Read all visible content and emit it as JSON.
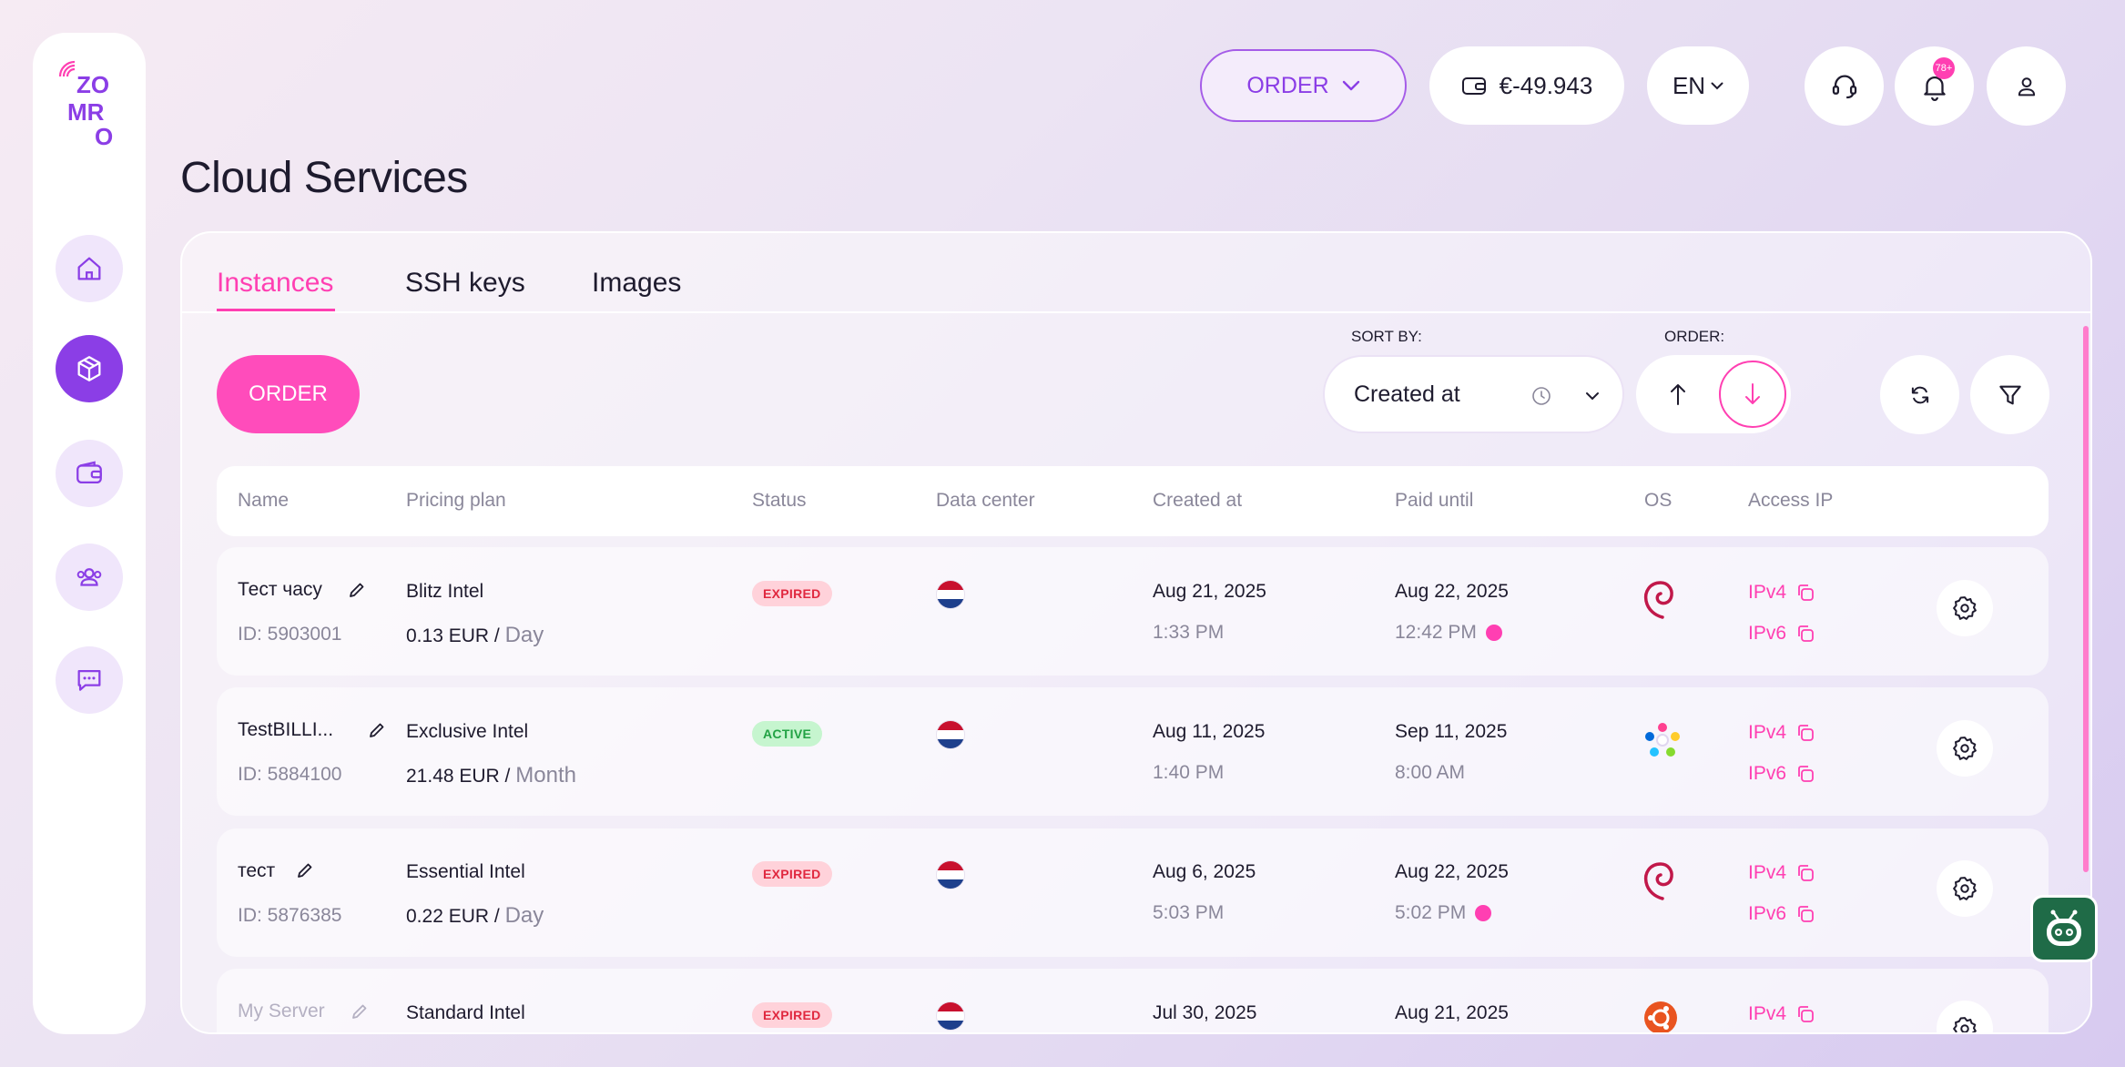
{
  "brand": {
    "logo_text": "ZOMRO"
  },
  "nav": [
    {
      "name": "home-icon",
      "active": false
    },
    {
      "name": "cube-icon",
      "active": true
    },
    {
      "name": "wallet-icon",
      "active": false
    },
    {
      "name": "users-icon",
      "active": false
    },
    {
      "name": "chat-icon",
      "active": false
    }
  ],
  "header": {
    "order_label": "ORDER",
    "balance": "€-49.943",
    "language": "EN",
    "notifications_badge": "78+"
  },
  "page": {
    "title": "Cloud Services"
  },
  "tabs": [
    {
      "label": "Instances",
      "active": true
    },
    {
      "label": "SSH keys",
      "active": false
    },
    {
      "label": "Images",
      "active": false
    }
  ],
  "toolbar": {
    "order_label": "ORDER",
    "sort_by_label": "SORT BY:",
    "sort_value": "Created at",
    "order_label_small": "ORDER:",
    "order_direction": "desc"
  },
  "table": {
    "columns": [
      "Name",
      "Pricing plan",
      "Status",
      "Data center",
      "Created at",
      "Paid until",
      "OS",
      "Access IP"
    ],
    "rows": [
      {
        "name": "Тест часу",
        "id": "ID: 5903001",
        "plan": "Blitz Intel",
        "price": "0.13 EUR /",
        "unit": "Day",
        "status": "EXPIRED",
        "dc": "netherlands-flag",
        "created_date": "Aug 21, 2025",
        "created_time": "1:33 PM",
        "paid_date": "Aug 22, 2025",
        "paid_time": "12:42 PM",
        "paid_warning": true,
        "os": "debian-icon",
        "ipv4": "IPv4",
        "ipv6": "IPv6",
        "dimmed": false
      },
      {
        "name": "TestBILLI...",
        "id": "ID: 5884100",
        "plan": "Exclusive Intel",
        "price": "21.48 EUR /",
        "unit": "Month",
        "status": "ACTIVE",
        "dc": "netherlands-flag",
        "created_date": "Aug 11, 2025",
        "created_time": "1:40 PM",
        "paid_date": "Sep 11, 2025",
        "paid_time": "8:00 AM",
        "paid_warning": false,
        "os": "almalinux-icon",
        "ipv4": "IPv4",
        "ipv6": "IPv6",
        "dimmed": false
      },
      {
        "name": "тест",
        "id": "ID: 5876385",
        "plan": "Essential Intel",
        "price": "0.22 EUR /",
        "unit": "Day",
        "status": "EXPIRED",
        "dc": "netherlands-flag",
        "created_date": "Aug 6, 2025",
        "created_time": "5:03 PM",
        "paid_date": "Aug 22, 2025",
        "paid_time": "5:02 PM",
        "paid_warning": true,
        "os": "debian-icon",
        "ipv4": "IPv4",
        "ipv6": "IPv6",
        "dimmed": false
      },
      {
        "name": "My Server",
        "id": "",
        "plan": "Standard Intel",
        "price": "",
        "unit": "",
        "status": "EXPIRED",
        "dc": "netherlands-flag",
        "created_date": "Jul 30, 2025",
        "created_time": "",
        "paid_date": "Aug 21, 2025",
        "paid_time": "",
        "paid_warning": false,
        "os": "ubuntu-icon",
        "ipv4": "IPv4",
        "ipv6": "",
        "dimmed": true
      }
    ]
  },
  "colors": {
    "accent": "#ff3fb2",
    "brand_purple": "#8b3ee6",
    "expired": "#e0283f",
    "active": "#22a244"
  }
}
